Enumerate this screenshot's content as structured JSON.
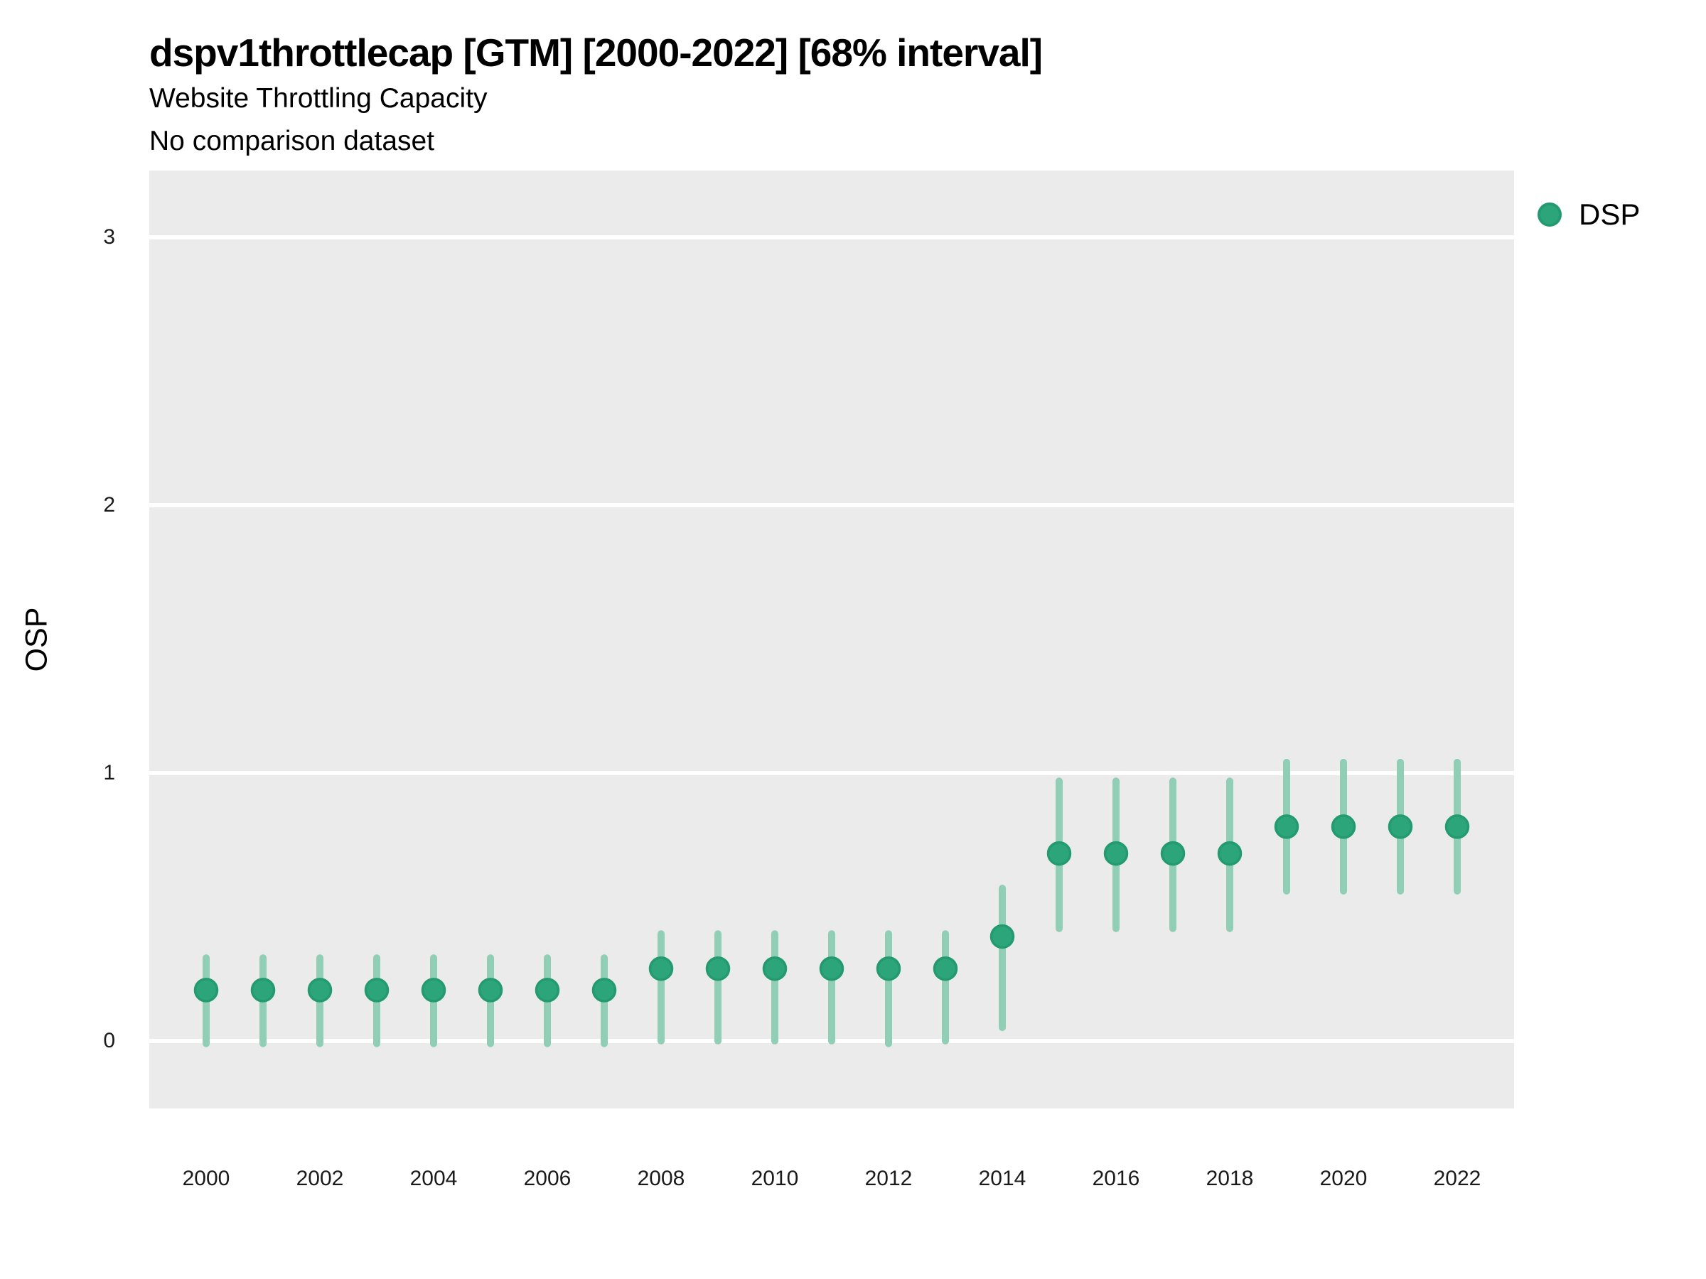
{
  "chart_data": {
    "type": "scatter",
    "title": "dspv1throttlecap [GTM] [2000-2022] [68% interval]",
    "subtitle": "Website Throttling Capacity",
    "note": "No comparison dataset",
    "xlabel": "",
    "ylabel": "OSP",
    "interval_level": "68%",
    "x": [
      2000,
      2001,
      2002,
      2003,
      2004,
      2005,
      2006,
      2007,
      2008,
      2009,
      2010,
      2011,
      2012,
      2013,
      2014,
      2015,
      2016,
      2017,
      2018,
      2019,
      2020,
      2021,
      2022
    ],
    "series": [
      {
        "name": "DSP",
        "values": [
          0.19,
          0.19,
          0.19,
          0.19,
          0.19,
          0.19,
          0.19,
          0.19,
          0.27,
          0.27,
          0.27,
          0.27,
          0.27,
          0.27,
          0.39,
          0.7,
          0.7,
          0.7,
          0.7,
          0.8,
          0.8,
          0.8,
          0.8
        ],
        "lower_68": [
          -0.01,
          -0.01,
          -0.01,
          -0.01,
          -0.01,
          -0.01,
          -0.01,
          -0.01,
          0.0,
          0.0,
          0.0,
          0.0,
          -0.01,
          0.0,
          0.05,
          0.42,
          0.42,
          0.42,
          0.42,
          0.56,
          0.56,
          0.56,
          0.56
        ],
        "upper_68": [
          0.31,
          0.31,
          0.31,
          0.31,
          0.31,
          0.31,
          0.31,
          0.31,
          0.4,
          0.4,
          0.4,
          0.4,
          0.4,
          0.4,
          0.57,
          0.97,
          0.97,
          0.97,
          0.97,
          1.04,
          1.04,
          1.04,
          1.04
        ]
      }
    ],
    "x_tick_labels": [
      "2000",
      "2002",
      "2004",
      "2006",
      "2008",
      "2010",
      "2012",
      "2014",
      "2016",
      "2018",
      "2020",
      "2022"
    ],
    "y_tick_labels": [
      "0",
      "1",
      "2",
      "3"
    ],
    "y_tick_values": [
      0,
      1,
      2,
      3
    ],
    "xlim": [
      1999,
      2023
    ],
    "ylim": [
      -0.25,
      3.25
    ],
    "grid": "horizontal-major-only",
    "legend_position": "right-top",
    "colors": {
      "point_fill": "#2CA57B",
      "point_ring": "#239A6F",
      "interval_bar": "#90CEB5",
      "panel_background": "#EBEBEB",
      "gridline": "#FFFFFF",
      "text": "#000000"
    }
  }
}
